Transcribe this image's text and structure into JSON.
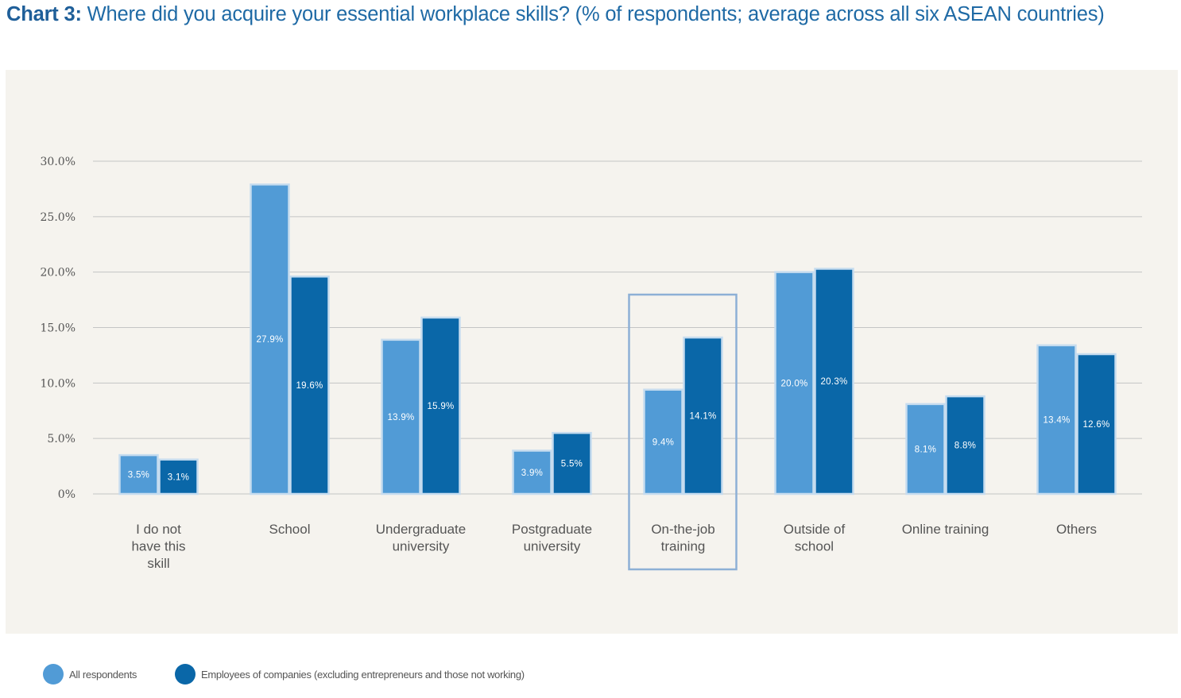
{
  "title": {
    "lead": "Chart 3:",
    "text": " Where did you acquire your essential workplace skills? (% of respondents; average across all six ASEAN countries)"
  },
  "colors": {
    "series1": "#519bd6",
    "series2": "#0a67a8",
    "grid": "#c4c4c4",
    "highlight_border": "#8db0d6",
    "background": "#f5f3ee"
  },
  "legend": {
    "items": [
      {
        "label": "All respondents",
        "color": "#519bd6"
      },
      {
        "label": "Employees of companies (excluding entrepreneurs and those not working)",
        "color": "#0a67a8"
      }
    ]
  },
  "chart_data": {
    "type": "bar",
    "title": "Where did you acquire your essential workplace skills? (% of respondents; average across all six ASEAN countries)",
    "categories": [
      [
        "I do not",
        "have this",
        "skill"
      ],
      [
        "School"
      ],
      [
        "Undergraduate",
        "university"
      ],
      [
        "Postgraduate",
        "university"
      ],
      [
        "On-the-job",
        "training"
      ],
      [
        "Outside of",
        "school"
      ],
      [
        "Online training"
      ],
      [
        "Others"
      ]
    ],
    "series": [
      {
        "name": "All respondents",
        "values": [
          3.5,
          27.9,
          13.9,
          3.9,
          9.4,
          20.0,
          8.1,
          13.4
        ]
      },
      {
        "name": "Employees of companies (excluding entrepreneurs and those not working)",
        "values": [
          3.1,
          19.6,
          15.9,
          5.5,
          14.1,
          20.3,
          8.8,
          12.6
        ]
      }
    ],
    "y_ticks": [
      "0%",
      "5.0%",
      "10.0%",
      "15.0%",
      "20.0%",
      "25.0%",
      "30.0%"
    ],
    "ylim": [
      0,
      30
    ],
    "grid": true,
    "legend_position": "bottom-left",
    "highlighted_category": 4
  }
}
